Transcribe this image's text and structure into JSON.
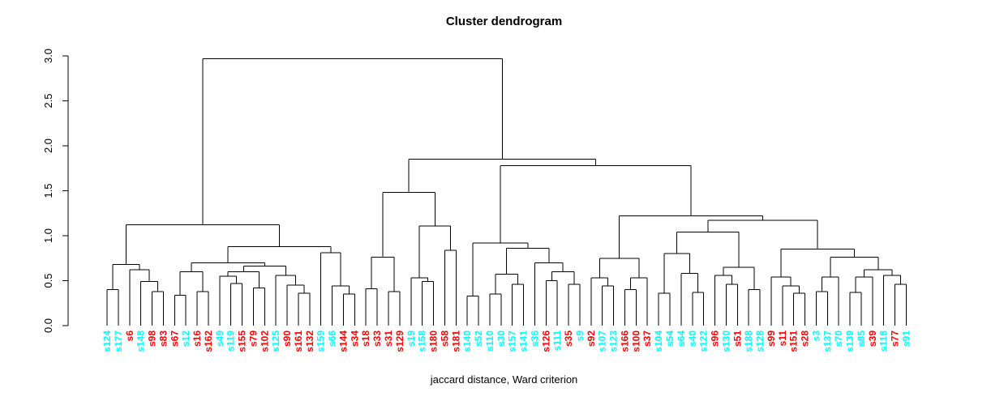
{
  "title": "Cluster dendrogram",
  "xlabel": "jaccard distance, Ward criterion",
  "chart_data": {
    "type": "dendrogram",
    "title": "Cluster dendrogram",
    "xlabel": "jaccard distance, Ward criterion",
    "ylabel": "",
    "ylim": [
      0,
      3
    ],
    "yticks": [
      0.0,
      0.5,
      1.0,
      1.5,
      2.0,
      2.5,
      3.0
    ],
    "grid": false,
    "legend": "none",
    "line_color": "#000000",
    "leaf_colors": {
      "r": "#FF0000",
      "c": "#00FFFF"
    },
    "root_height": 2.97,
    "leaves": [
      {
        "label": "s124",
        "color": "c"
      },
      {
        "label": "s177",
        "color": "c"
      },
      {
        "label": "s6",
        "color": "r"
      },
      {
        "label": "s148",
        "color": "c"
      },
      {
        "label": "s98",
        "color": "r"
      },
      {
        "label": "s83",
        "color": "r"
      },
      {
        "label": "s67",
        "color": "r"
      },
      {
        "label": "s12",
        "color": "c"
      },
      {
        "label": "s16",
        "color": "r"
      },
      {
        "label": "s162",
        "color": "r"
      },
      {
        "label": "s49",
        "color": "c"
      },
      {
        "label": "s119",
        "color": "c"
      },
      {
        "label": "s155",
        "color": "r"
      },
      {
        "label": "s79",
        "color": "r"
      },
      {
        "label": "s102",
        "color": "r"
      },
      {
        "label": "s125",
        "color": "c"
      },
      {
        "label": "s90",
        "color": "r"
      },
      {
        "label": "s161",
        "color": "r"
      },
      {
        "label": "s132",
        "color": "r"
      },
      {
        "label": "s159",
        "color": "c"
      },
      {
        "label": "s66",
        "color": "c"
      },
      {
        "label": "s144",
        "color": "r"
      },
      {
        "label": "s34",
        "color": "r"
      },
      {
        "label": "s18",
        "color": "r"
      },
      {
        "label": "s33",
        "color": "r"
      },
      {
        "label": "s31",
        "color": "r"
      },
      {
        "label": "s129",
        "color": "r"
      },
      {
        "label": "s19",
        "color": "c"
      },
      {
        "label": "s158",
        "color": "c"
      },
      {
        "label": "s180",
        "color": "r"
      },
      {
        "label": "s58",
        "color": "r"
      },
      {
        "label": "s181",
        "color": "r"
      },
      {
        "label": "s140",
        "color": "c"
      },
      {
        "label": "s52",
        "color": "c"
      },
      {
        "label": "s110",
        "color": "c"
      },
      {
        "label": "s30",
        "color": "c"
      },
      {
        "label": "s157",
        "color": "c"
      },
      {
        "label": "s141",
        "color": "c"
      },
      {
        "label": "s36",
        "color": "c"
      },
      {
        "label": "s126",
        "color": "r"
      },
      {
        "label": "s111",
        "color": "c"
      },
      {
        "label": "s35",
        "color": "r"
      },
      {
        "label": "s9",
        "color": "c"
      },
      {
        "label": "s92",
        "color": "r"
      },
      {
        "label": "s107",
        "color": "c"
      },
      {
        "label": "s123",
        "color": "c"
      },
      {
        "label": "s166",
        "color": "r"
      },
      {
        "label": "s100",
        "color": "r"
      },
      {
        "label": "s37",
        "color": "r"
      },
      {
        "label": "s104",
        "color": "c"
      },
      {
        "label": "s54",
        "color": "c"
      },
      {
        "label": "s64",
        "color": "c"
      },
      {
        "label": "s40",
        "color": "c"
      },
      {
        "label": "s122",
        "color": "c"
      },
      {
        "label": "s96",
        "color": "r"
      },
      {
        "label": "s130",
        "color": "c"
      },
      {
        "label": "s51",
        "color": "r"
      },
      {
        "label": "s188",
        "color": "c"
      },
      {
        "label": "s128",
        "color": "c"
      },
      {
        "label": "s99",
        "color": "r"
      },
      {
        "label": "s11",
        "color": "r"
      },
      {
        "label": "s151",
        "color": "r"
      },
      {
        "label": "s28",
        "color": "r"
      },
      {
        "label": "s3",
        "color": "c"
      },
      {
        "label": "s137",
        "color": "c"
      },
      {
        "label": "s70",
        "color": "c"
      },
      {
        "label": "s139",
        "color": "c"
      },
      {
        "label": "s85",
        "color": "c"
      },
      {
        "label": "s39",
        "color": "r"
      },
      {
        "label": "s118",
        "color": "c"
      },
      {
        "label": "s77",
        "color": "r"
      },
      {
        "label": "s91",
        "color": "c"
      }
    ],
    "tree": {
      "h": 2.97,
      "c": [
        {
          "h": 1.12,
          "c": [
            {
              "h": 0.68,
              "c": [
                {
                  "h": 0.4,
                  "c": [
                    0,
                    1
                  ]
                },
                {
                  "h": 0.62,
                  "c": [
                    2,
                    {
                      "h": 0.49,
                      "c": [
                        3,
                        {
                          "h": 0.38,
                          "c": [
                            4,
                            5
                          ]
                        }
                      ]
                    }
                  ]
                }
              ]
            },
            {
              "h": 0.88,
              "c": [
                {
                  "h": 0.7,
                  "c": [
                    {
                      "h": 0.6,
                      "c": [
                        {
                          "h": 0.34,
                          "c": [
                            6,
                            7
                          ]
                        },
                        {
                          "h": 0.38,
                          "c": [
                            8,
                            9
                          ]
                        }
                      ]
                    },
                    {
                      "h": 0.66,
                      "c": [
                        {
                          "h": 0.6,
                          "c": [
                            {
                              "h": 0.55,
                              "c": [
                                10,
                                {
                                  "h": 0.47,
                                  "c": [
                                    11,
                                    12
                                  ]
                                }
                              ]
                            },
                            {
                              "h": 0.42,
                              "c": [
                                13,
                                14
                              ]
                            }
                          ]
                        },
                        {
                          "h": 0.56,
                          "c": [
                            15,
                            {
                              "h": 0.45,
                              "c": [
                                16,
                                {
                                  "h": 0.36,
                                  "c": [
                                    17,
                                    18
                                  ]
                                }
                              ]
                            }
                          ]
                        }
                      ]
                    }
                  ]
                },
                {
                  "h": 0.81,
                  "c": [
                    19,
                    {
                      "h": 0.44,
                      "c": [
                        20,
                        {
                          "h": 0.35,
                          "c": [
                            21,
                            22
                          ]
                        }
                      ]
                    }
                  ]
                }
              ]
            }
          ]
        },
        {
          "h": 1.85,
          "c": [
            {
              "h": 1.48,
              "c": [
                {
                  "h": 0.76,
                  "c": [
                    {
                      "h": 0.41,
                      "c": [
                        23,
                        24
                      ]
                    },
                    {
                      "h": 0.38,
                      "c": [
                        25,
                        26
                      ]
                    }
                  ]
                },
                {
                  "h": 1.11,
                  "c": [
                    {
                      "h": 0.53,
                      "c": [
                        27,
                        {
                          "h": 0.49,
                          "c": [
                            28,
                            29
                          ]
                        }
                      ]
                    },
                    {
                      "h": 0.84,
                      "c": [
                        30,
                        31
                      ]
                    }
                  ]
                }
              ]
            },
            {
              "h": 1.78,
              "c": [
                {
                  "h": 0.92,
                  "c": [
                    {
                      "h": 0.33,
                      "c": [
                        32,
                        33
                      ]
                    },
                    {
                      "h": 0.86,
                      "c": [
                        {
                          "h": 0.57,
                          "c": [
                            {
                              "h": 0.35,
                              "c": [
                                34,
                                35
                              ]
                            },
                            {
                              "h": 0.46,
                              "c": [
                                36,
                                37
                              ]
                            }
                          ]
                        },
                        {
                          "h": 0.7,
                          "c": [
                            38,
                            {
                              "h": 0.6,
                              "c": [
                                {
                                  "h": 0.5,
                                  "c": [
                                    39,
                                    40
                                  ]
                                },
                                {
                                  "h": 0.46,
                                  "c": [
                                    41,
                                    42
                                  ]
                                }
                              ]
                            }
                          ]
                        }
                      ]
                    }
                  ]
                },
                {
                  "h": 1.22,
                  "c": [
                    {
                      "h": 0.75,
                      "c": [
                        {
                          "h": 0.53,
                          "c": [
                            43,
                            {
                              "h": 0.44,
                              "c": [
                                44,
                                45
                              ]
                            }
                          ]
                        },
                        {
                          "h": 0.53,
                          "c": [
                            {
                              "h": 0.4,
                              "c": [
                                46,
                                47
                              ]
                            },
                            48
                          ]
                        }
                      ]
                    },
                    {
                      "h": 1.17,
                      "c": [
                        {
                          "h": 1.04,
                          "c": [
                            {
                              "h": 0.8,
                              "c": [
                                {
                                  "h": 0.36,
                                  "c": [
                                    49,
                                    50
                                  ]
                                },
                                {
                                  "h": 0.58,
                                  "c": [
                                    51,
                                    {
                                      "h": 0.37,
                                      "c": [
                                        52,
                                        53
                                      ]
                                    }
                                  ]
                                }
                              ]
                            },
                            {
                              "h": 0.65,
                              "c": [
                                {
                                  "h": 0.56,
                                  "c": [
                                    54,
                                    {
                                      "h": 0.46,
                                      "c": [
                                        55,
                                        56
                                      ]
                                    }
                                  ]
                                },
                                {
                                  "h": 0.4,
                                  "c": [
                                    57,
                                    58
                                  ]
                                }
                              ]
                            }
                          ]
                        },
                        {
                          "h": 0.85,
                          "c": [
                            {
                              "h": 0.54,
                              "c": [
                                59,
                                {
                                  "h": 0.44,
                                  "c": [
                                    60,
                                    {
                                      "h": 0.36,
                                      "c": [
                                        61,
                                        62
                                      ]
                                    }
                                  ]
                                }
                              ]
                            },
                            {
                              "h": 0.76,
                              "c": [
                                {
                                  "h": 0.54,
                                  "c": [
                                    {
                                      "h": 0.38,
                                      "c": [
                                        63,
                                        64
                                      ]
                                    },
                                    65
                                  ]
                                },
                                {
                                  "h": 0.62,
                                  "c": [
                                    {
                                      "h": 0.54,
                                      "c": [
                                        {
                                          "h": 0.37,
                                          "c": [
                                            66,
                                            67
                                          ]
                                        },
                                        68
                                      ]
                                    },
                                    {
                                      "h": 0.56,
                                      "c": [
                                        69,
                                        {
                                          "h": 0.46,
                                          "c": [
                                            70,
                                            71
                                          ]
                                        }
                                      ]
                                    }
                                  ]
                                }
                              ]
                            }
                          ]
                        }
                      ]
                    }
                  ]
                }
              ]
            }
          ]
        }
      ]
    }
  }
}
